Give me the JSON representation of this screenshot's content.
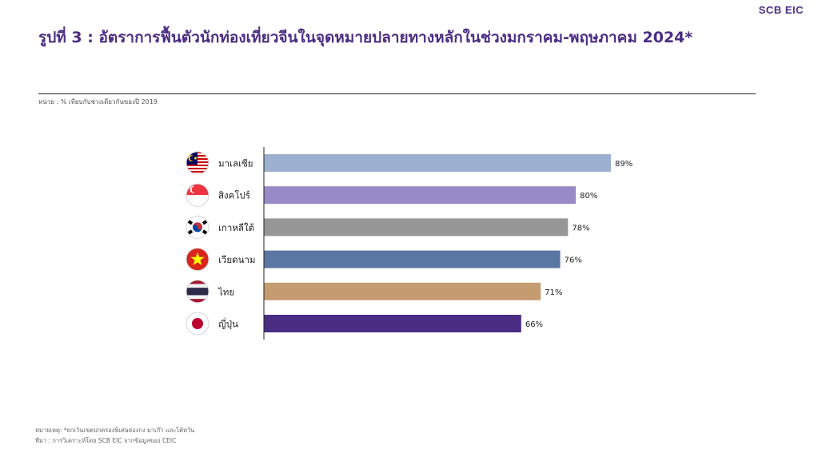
{
  "header": {
    "logo": "SCB EIC",
    "title": "รูปที่ 3 : อัตราการฟื้นตัวนักท่องเที่ยวจีนในจุดหมายปลายทางหลักในช่วงมกราคม-พฤษภาคม 2024*",
    "unit_note": "หน่วย : % เทียบกับช่วงเดียวกันของปี 2019"
  },
  "footer": {
    "remark": "หมายเหตุ: *ยกเว้นเขตปกครองพิเศษฮ่องกง มาเก๊า และไต้หวัน",
    "source": "ที่มา : การวิเคราะห์โดย SCB EIC จากข้อมูลของ CEIC"
  },
  "chart_data": {
    "type": "bar",
    "orientation": "horizontal",
    "title": "รูปที่ 3 : อัตราการฟื้นตัวนักท่องเที่ยวจีนในจุดหมายปลายทางหลักในช่วงมกราคม-พฤษภาคม 2024*",
    "categories": [
      "มาเลเซีย",
      "สิงคโปร์",
      "เกาหลีใต้",
      "เวียดนาม",
      "ไทย",
      "ญี่ปุ่น"
    ],
    "values": [
      89,
      80,
      78,
      76,
      71,
      66
    ],
    "data_labels": [
      "89%",
      "80%",
      "78%",
      "76%",
      "71%",
      "66%"
    ],
    "flag_icons": [
      "malaysia-flag-icon",
      "singapore-flag-icon",
      "south-korea-flag-icon",
      "vietnam-flag-icon",
      "thailand-flag-icon",
      "japan-flag-icon"
    ],
    "colors": [
      "#9db0cf",
      "#978ac7",
      "#969696",
      "#5a77a3",
      "#c49c70",
      "#4b2c83"
    ],
    "xlim": [
      0,
      89
    ],
    "grid": false,
    "legend": "none"
  }
}
